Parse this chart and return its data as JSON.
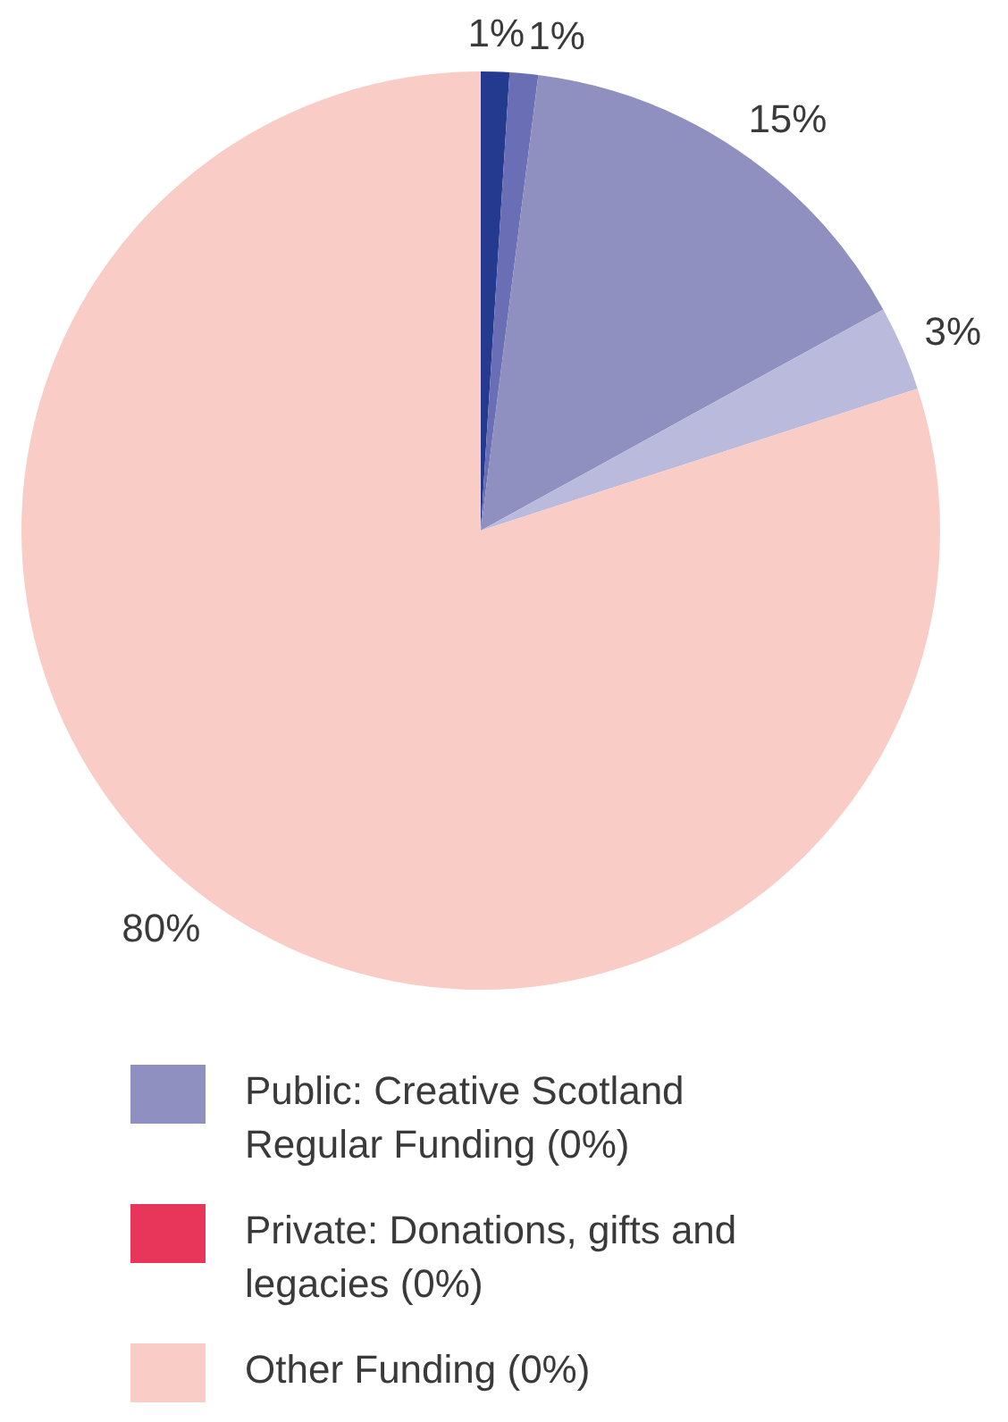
{
  "chart_data": {
    "type": "pie",
    "categories": [
      null,
      null,
      "Public: Creative Scotland Regular Funding (0%)",
      null,
      "Private: Donations, gifts and legacies (0%)",
      "Other Funding (0%)"
    ],
    "values": [
      1,
      1,
      15,
      3,
      0,
      80
    ],
    "colors": [
      "#233a8e",
      "#6a6fb5",
      "#9090c0",
      "#babadc",
      "#e8365a",
      "#f9ccc6"
    ],
    "value_labels": [
      "1%",
      "1%",
      "15%",
      "3%",
      null,
      "80%"
    ],
    "legend": "bottom"
  }
}
